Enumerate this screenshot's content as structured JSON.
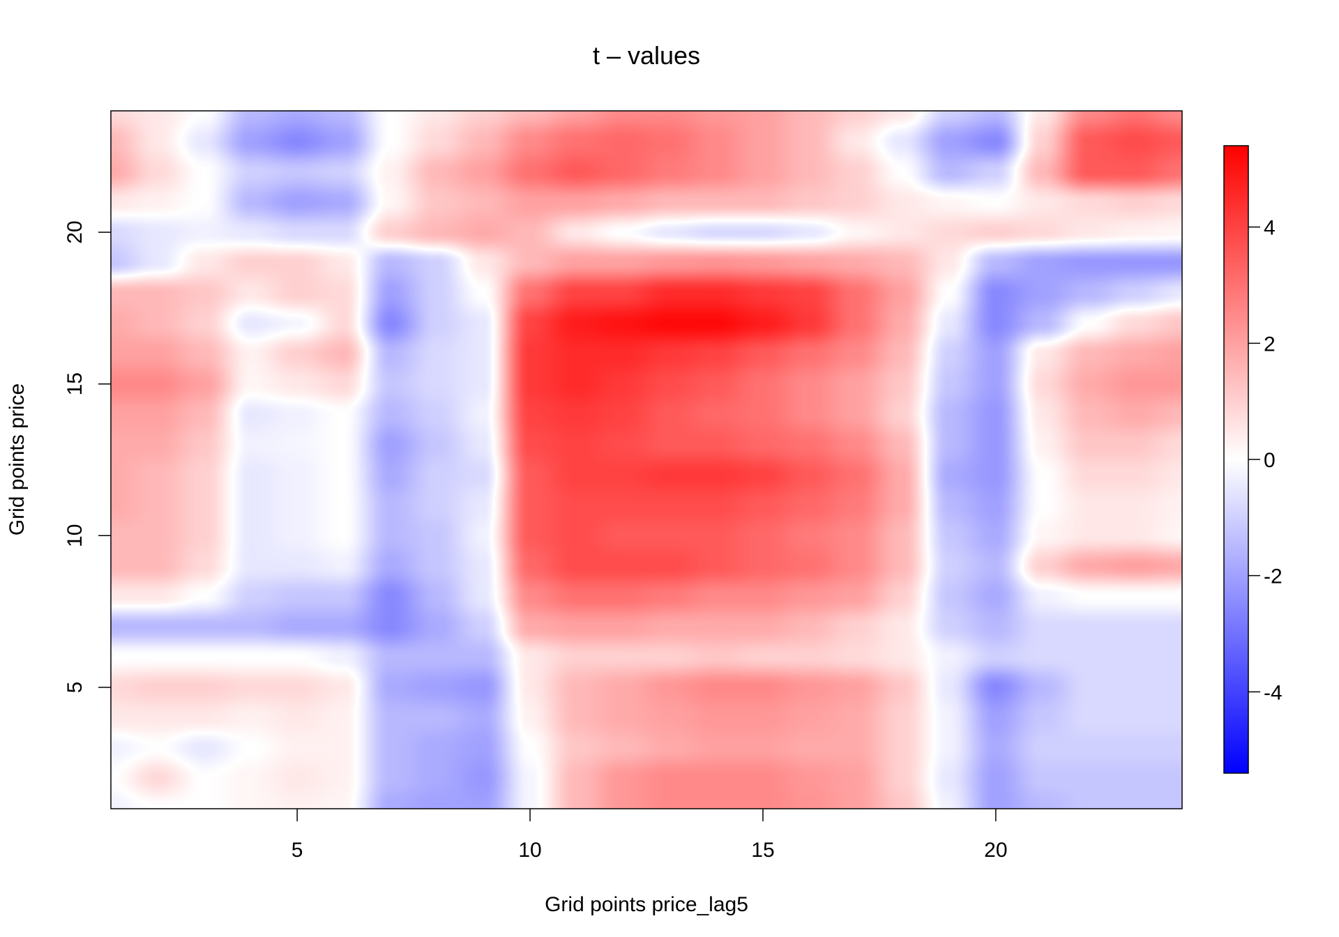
{
  "chart_data": {
    "type": "heatmap",
    "title": "t – values",
    "xlabel": "Grid points price_lag5",
    "ylabel": "Grid points price",
    "xlim": [
      1,
      24
    ],
    "ylim": [
      1,
      24
    ],
    "x_ticks": [
      5,
      10,
      15,
      20
    ],
    "y_ticks": [
      5,
      10,
      15,
      20
    ],
    "colorbar": {
      "range": [
        -5.4,
        5.4
      ],
      "ticks": [
        -4,
        -2,
        0,
        2,
        4
      ],
      "colors": {
        "low": "#0000ff",
        "mid": "#ffffff",
        "high": "#ff0000"
      }
    },
    "grid": false,
    "x": [
      1,
      2,
      3,
      4,
      5,
      6,
      7,
      8,
      9,
      10,
      11,
      12,
      13,
      14,
      15,
      16,
      17,
      18,
      19,
      20,
      21,
      22,
      23,
      24
    ],
    "y": [
      24,
      23,
      22,
      21,
      20,
      19,
      18,
      17,
      16,
      15,
      14,
      13,
      12,
      11,
      10,
      9,
      8,
      7,
      6,
      5,
      4,
      3,
      2,
      1
    ],
    "z": [
      [
        0.8,
        0.5,
        0.0,
        -1.5,
        -1.8,
        -1.5,
        0.0,
        0.5,
        1.0,
        1.5,
        2.0,
        2.5,
        2.5,
        2.2,
        2.0,
        1.5,
        1.0,
        0.5,
        -1.0,
        -1.5,
        0.5,
        2.5,
        3.0,
        2.5
      ],
      [
        1.5,
        0.5,
        -0.5,
        -2.0,
        -2.5,
        -2.0,
        0.0,
        0.8,
        1.5,
        2.5,
        3.0,
        3.2,
        3.0,
        2.5,
        2.0,
        1.5,
        0.5,
        -0.5,
        -2.0,
        -2.5,
        1.0,
        3.5,
        3.8,
        3.5
      ],
      [
        1.8,
        0.8,
        0.0,
        -1.0,
        -1.2,
        -1.0,
        0.3,
        1.5,
        2.0,
        3.0,
        3.5,
        3.2,
        2.8,
        2.5,
        2.0,
        1.5,
        1.0,
        0.0,
        -1.5,
        -1.0,
        1.5,
        3.5,
        3.5,
        3.0
      ],
      [
        0.5,
        0.3,
        0.0,
        -1.5,
        -2.0,
        -1.8,
        0.2,
        1.2,
        1.5,
        2.0,
        2.0,
        1.8,
        1.5,
        1.5,
        1.5,
        1.2,
        1.0,
        0.5,
        0.2,
        0.0,
        0.5,
        0.8,
        1.0,
        0.8
      ],
      [
        -0.8,
        -0.5,
        -0.3,
        -0.5,
        -0.8,
        -0.8,
        1.0,
        1.5,
        1.8,
        1.5,
        0.5,
        0.0,
        -0.5,
        -0.8,
        -0.8,
        -0.5,
        0.2,
        0.5,
        0.8,
        1.0,
        0.8,
        0.5,
        0.3,
        0.2
      ],
      [
        -1.2,
        -0.5,
        0.5,
        1.0,
        1.0,
        0.5,
        -1.5,
        -1.0,
        0.5,
        1.5,
        2.0,
        2.0,
        2.2,
        2.3,
        2.2,
        2.0,
        1.8,
        1.5,
        0.5,
        -1.5,
        -2.0,
        -2.2,
        -2.2,
        -2.2
      ],
      [
        1.5,
        1.5,
        1.2,
        0.5,
        1.0,
        0.8,
        -2.0,
        -1.0,
        0.0,
        3.0,
        4.0,
        4.0,
        4.5,
        4.5,
        4.2,
        4.0,
        3.0,
        2.0,
        0.0,
        -2.5,
        -2.0,
        -1.5,
        -1.0,
        -0.5
      ],
      [
        1.8,
        1.5,
        1.0,
        -0.5,
        -0.2,
        0.8,
        -2.5,
        -1.0,
        -0.5,
        4.0,
        4.8,
        5.0,
        5.2,
        5.2,
        4.8,
        4.2,
        3.0,
        1.8,
        -0.5,
        -2.5,
        -1.5,
        0.0,
        0.8,
        1.2
      ],
      [
        2.0,
        2.0,
        1.5,
        0.3,
        1.0,
        1.5,
        -1.5,
        -0.8,
        -0.5,
        4.2,
        4.5,
        4.5,
        4.2,
        4.0,
        3.5,
        3.0,
        2.5,
        1.5,
        -1.0,
        -2.0,
        0.5,
        1.5,
        1.8,
        2.0
      ],
      [
        2.5,
        2.5,
        2.0,
        0.2,
        0.5,
        0.8,
        -1.2,
        -0.8,
        -0.5,
        4.2,
        4.5,
        4.2,
        3.8,
        3.5,
        3.0,
        2.5,
        2.0,
        1.2,
        -1.2,
        -2.0,
        0.8,
        1.8,
        2.2,
        2.2
      ],
      [
        2.0,
        2.0,
        1.5,
        -0.5,
        -0.3,
        0.0,
        -1.5,
        -1.0,
        -0.3,
        4.0,
        4.2,
        4.0,
        3.5,
        3.2,
        3.0,
        2.5,
        2.0,
        1.0,
        -1.5,
        -2.2,
        0.5,
        1.5,
        1.8,
        1.5
      ],
      [
        1.8,
        1.8,
        1.2,
        -0.3,
        -0.2,
        0.0,
        -2.0,
        -1.2,
        -0.5,
        3.8,
        4.0,
        3.8,
        3.5,
        3.5,
        3.2,
        3.0,
        2.5,
        1.5,
        -1.5,
        -2.2,
        0.3,
        1.2,
        1.2,
        0.8
      ],
      [
        1.8,
        1.5,
        1.0,
        -0.5,
        -0.3,
        0.0,
        -1.8,
        -1.0,
        -0.8,
        3.5,
        4.0,
        4.0,
        4.2,
        4.2,
        4.0,
        3.5,
        3.0,
        1.8,
        -1.8,
        -2.2,
        0.0,
        0.8,
        0.8,
        0.5
      ],
      [
        1.8,
        1.5,
        1.0,
        -0.5,
        -0.3,
        0.0,
        -1.5,
        -1.0,
        -0.5,
        3.5,
        3.8,
        3.8,
        3.8,
        3.8,
        3.5,
        3.2,
        2.8,
        1.8,
        -1.5,
        -2.0,
        0.0,
        0.5,
        0.5,
        0.3
      ],
      [
        1.5,
        1.5,
        1.0,
        -0.5,
        -0.3,
        0.0,
        -1.5,
        -1.2,
        -0.3,
        3.5,
        3.8,
        3.5,
        3.5,
        3.5,
        3.2,
        2.8,
        2.5,
        1.5,
        -1.2,
        -1.8,
        0.2,
        0.5,
        0.5,
        0.2
      ],
      [
        1.5,
        1.5,
        0.8,
        -0.5,
        -0.5,
        -0.3,
        -1.8,
        -1.2,
        -0.5,
        3.2,
        3.8,
        3.8,
        3.8,
        3.5,
        3.2,
        3.0,
        2.5,
        1.5,
        -1.0,
        -1.5,
        1.0,
        1.8,
        2.0,
        1.8
      ],
      [
        0.5,
        0.5,
        0.0,
        -1.0,
        -1.2,
        -1.2,
        -2.5,
        -1.5,
        -0.5,
        2.5,
        3.0,
        3.0,
        2.8,
        2.5,
        2.5,
        2.2,
        2.0,
        1.0,
        -1.2,
        -1.8,
        -0.3,
        0.0,
        0.0,
        0.0
      ],
      [
        -1.5,
        -1.5,
        -1.5,
        -1.5,
        -1.8,
        -1.8,
        -2.5,
        -1.8,
        -1.0,
        1.8,
        2.0,
        2.0,
        1.8,
        1.8,
        1.8,
        1.5,
        1.0,
        0.5,
        -1.0,
        -1.5,
        -0.8,
        -0.8,
        -0.8,
        -0.8
      ],
      [
        0.0,
        0.0,
        0.0,
        0.0,
        0.0,
        -0.3,
        -1.5,
        -1.5,
        -1.5,
        0.5,
        1.0,
        1.0,
        1.0,
        1.2,
        1.0,
        1.0,
        0.8,
        0.5,
        -0.3,
        -1.0,
        -0.8,
        -0.8,
        -0.8,
        -0.8
      ],
      [
        0.8,
        1.0,
        1.0,
        0.8,
        0.8,
        0.5,
        -1.8,
        -2.0,
        -2.2,
        0.5,
        1.5,
        1.8,
        2.2,
        2.5,
        2.5,
        2.2,
        2.0,
        1.2,
        -0.5,
        -2.5,
        -1.5,
        -0.8,
        -0.8,
        -0.8
      ],
      [
        0.5,
        0.5,
        0.5,
        0.3,
        0.5,
        0.3,
        -1.5,
        -1.5,
        -1.8,
        0.3,
        1.5,
        1.8,
        2.0,
        2.2,
        2.2,
        2.0,
        1.8,
        1.0,
        -0.3,
        -2.0,
        -1.2,
        -0.8,
        -0.8,
        -0.8
      ],
      [
        -0.3,
        0.0,
        -0.5,
        0.0,
        0.3,
        0.3,
        -1.5,
        -1.8,
        -2.0,
        0.0,
        1.2,
        1.5,
        1.8,
        2.0,
        2.0,
        1.8,
        1.8,
        1.0,
        -0.3,
        -1.8,
        -1.0,
        -1.0,
        -1.0,
        -1.0
      ],
      [
        0.0,
        0.8,
        0.0,
        0.2,
        0.5,
        0.3,
        -1.5,
        -1.8,
        -2.2,
        -0.2,
        1.5,
        2.2,
        2.5,
        2.5,
        2.5,
        2.2,
        2.0,
        1.0,
        -0.5,
        -2.0,
        -1.2,
        -1.2,
        -1.2,
        -1.2
      ],
      [
        -0.3,
        0.0,
        0.0,
        0.2,
        0.3,
        0.2,
        -1.8,
        -2.0,
        -2.0,
        -0.2,
        1.5,
        2.2,
        2.5,
        2.5,
        2.5,
        2.3,
        2.0,
        1.2,
        -0.3,
        -2.0,
        -1.5,
        -1.2,
        -1.2,
        -1.2
      ]
    ]
  }
}
